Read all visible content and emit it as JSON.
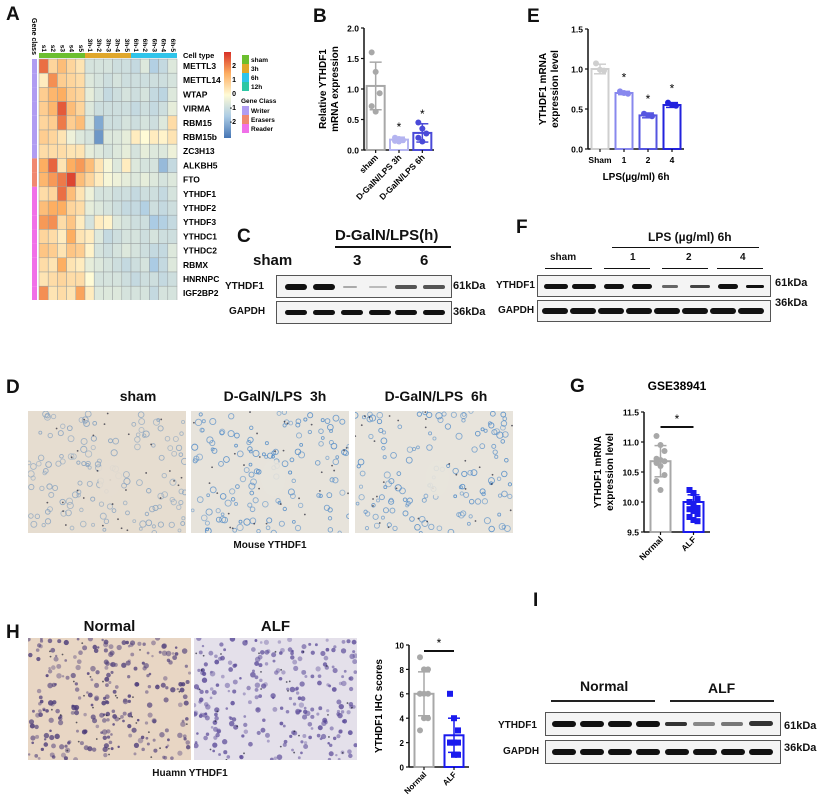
{
  "figure": {
    "panels": {
      "A": {
        "label": "A"
      },
      "B": {
        "label": "B"
      },
      "C": {
        "label": "C"
      },
      "D": {
        "label": "D"
      },
      "E": {
        "label": "E"
      },
      "F": {
        "label": "F"
      },
      "G": {
        "label": "G"
      },
      "H": {
        "label": "H"
      },
      "I": {
        "label": "I"
      }
    }
  },
  "heatmap": {
    "gene_class_header": "Gene class",
    "cell_type_label": "Cell type",
    "columns": [
      "s1",
      "s2",
      "s3",
      "s4",
      "s5",
      "3h-1",
      "3h-2",
      "3h-3",
      "3h-4",
      "3h-5",
      "6h-1",
      "6h-2",
      "6h-3",
      "6h-4",
      "6h-5"
    ],
    "column_groups": [
      {
        "name": "sham",
        "color": "#6cbf2f",
        "count": 5
      },
      {
        "name": "3h",
        "color": "#e0a72b",
        "count": 5
      },
      {
        "name": "6h",
        "color": "#2fc4ea",
        "count": 5
      }
    ],
    "rows": [
      "METTL3",
      "METTL14",
      "WTAP",
      "VIRMA",
      "RBM15",
      "RBM15b",
      "ZC3H13",
      "ALKBH5",
      "FTO",
      "YTHDF1",
      "YTHDF2",
      "YTHDF3",
      "YTHDC1",
      "YTHDC2",
      "RBMX",
      "HNRNPC",
      "IGF2BP2"
    ],
    "row_classes": [
      "Writer",
      "Writer",
      "Writer",
      "Writer",
      "Writer",
      "Writer",
      "Writer",
      "Eraser",
      "Eraser",
      "Reader",
      "Reader",
      "Reader",
      "Reader",
      "Reader",
      "Reader",
      "Reader",
      "Reader"
    ],
    "colorbar_ticks": [
      "2",
      "1",
      "0",
      "-1",
      "-2"
    ],
    "legend_celltype": [
      {
        "name": "sham",
        "color": "#6cbf2f"
      },
      {
        "name": "3h",
        "color": "#e0a72b"
      },
      {
        "name": "6h",
        "color": "#2fc4ea"
      },
      {
        "name": "12h",
        "color": "#2ec7a5"
      }
    ],
    "legend_geneclass_title": "Gene Class",
    "legend_geneclass": [
      {
        "name": "Writer",
        "color": "#b09cf2"
      },
      {
        "name": "Erasers",
        "color": "#f08870"
      },
      {
        "name": "Reader",
        "color": "#f070e8"
      }
    ],
    "values": [
      [
        1.6,
        0.5,
        0.8,
        0.5,
        0.3,
        -0.5,
        -0.5,
        -0.5,
        -0.6,
        -0.6,
        -0.7,
        -0.4,
        -0.9,
        -0.7,
        -0.4
      ],
      [
        0.2,
        1.3,
        0.6,
        0.5,
        0.4,
        -0.4,
        -0.5,
        -0.6,
        -0.5,
        -0.6,
        -0.6,
        -0.6,
        -0.6,
        -0.6,
        -0.5
      ],
      [
        0.6,
        0.9,
        1.0,
        0.6,
        0.5,
        -0.3,
        -0.5,
        -0.7,
        -0.6,
        -0.5,
        -0.6,
        -0.5,
        -0.7,
        -0.8,
        -0.4
      ],
      [
        0.6,
        0.9,
        1.8,
        0.8,
        0.5,
        -0.4,
        -0.6,
        -0.6,
        -0.6,
        -0.6,
        -0.7,
        -0.6,
        -0.7,
        -0.6,
        -0.3
      ],
      [
        0.5,
        0.6,
        1.5,
        0.6,
        0.8,
        -0.4,
        -1.4,
        -0.6,
        -0.6,
        -0.5,
        -0.6,
        -0.5,
        -0.6,
        -0.4,
        0.4
      ],
      [
        0.6,
        0.5,
        0.3,
        -0.2,
        -0.4,
        -0.5,
        -1.6,
        -0.4,
        -0.4,
        -0.3,
        0.2,
        0.0,
        0.2,
        0.1,
        0.3
      ],
      [
        0.4,
        0.4,
        0.4,
        0.3,
        0.3,
        -0.3,
        -0.4,
        -0.5,
        -0.4,
        -0.3,
        -0.5,
        -0.3,
        -0.4,
        -0.4,
        -0.2
      ],
      [
        1.0,
        1.7,
        0.3,
        1.0,
        1.2,
        0.8,
        0.3,
        -0.1,
        -0.4,
        0.2,
        -0.4,
        -0.5,
        -0.5,
        -1.2,
        -0.7
      ],
      [
        0.9,
        1.2,
        1.5,
        2.0,
        0.8,
        0.5,
        0.2,
        -0.1,
        -0.2,
        -0.3,
        -0.4,
        -0.3,
        -0.4,
        -0.5,
        -0.4
      ],
      [
        0.4,
        0.5,
        1.6,
        0.8,
        0.3,
        -0.2,
        -0.5,
        -0.5,
        -0.6,
        -0.6,
        -0.7,
        -0.6,
        -0.6,
        -0.7,
        -0.5
      ],
      [
        0.8,
        1.0,
        1.0,
        0.5,
        0.4,
        -0.3,
        -0.4,
        -0.5,
        -0.6,
        -0.7,
        -0.7,
        -0.9,
        -0.6,
        -0.7,
        -0.6
      ],
      [
        1.2,
        1.3,
        0.4,
        0.7,
        0.2,
        -0.5,
        0.2,
        0.1,
        -0.4,
        -0.5,
        -0.6,
        -0.6,
        -1.0,
        -0.9,
        -0.7
      ],
      [
        0.5,
        0.4,
        0.2,
        1.0,
        0.3,
        0.2,
        -0.4,
        -0.7,
        -0.6,
        -0.5,
        -0.5,
        -0.6,
        -0.5,
        -0.6,
        -0.6
      ],
      [
        0.7,
        0.6,
        0.3,
        0.7,
        0.6,
        0.1,
        -0.5,
        -0.6,
        -0.5,
        -0.4,
        -0.5,
        -0.6,
        -0.7,
        -0.7,
        -0.4
      ],
      [
        0.4,
        0.3,
        1.0,
        0.3,
        0.2,
        -0.3,
        -0.4,
        -0.5,
        -0.6,
        -0.7,
        -0.6,
        -0.5,
        -1.0,
        -0.7,
        -0.4
      ],
      [
        0.3,
        0.4,
        0.5,
        0.4,
        0.4,
        0.0,
        -0.5,
        -0.5,
        -0.5,
        -0.6,
        -0.7,
        -0.6,
        -0.6,
        -0.7,
        -0.6
      ],
      [
        1.3,
        0.3,
        0.4,
        0.3,
        1.1,
        0.2,
        -0.4,
        -0.4,
        -0.4,
        -0.5,
        -0.5,
        -0.5,
        -0.7,
        -0.5,
        -0.5
      ]
    ]
  },
  "panelC": {
    "treatment_label": "D-GalN/LPS(h)",
    "group_labels": [
      "sham",
      "3",
      "6"
    ],
    "row_labels": [
      "YTHDF1",
      "GAPDH"
    ],
    "sizes": [
      "61kDa",
      "36kDa"
    ]
  },
  "panelF": {
    "treatment_label": "LPS (µg/ml) 6h",
    "group_labels": [
      "sham",
      "1",
      "2",
      "4"
    ],
    "row_labels": [
      "YTHDF1",
      "GAPDH"
    ],
    "sizes": [
      "61kDa",
      "36kDa"
    ]
  },
  "panelD": {
    "titles": [
      "sham",
      "D-GalN/LPS  3h",
      "D-GalN/LPS  6h"
    ],
    "caption": "Mouse YTHDF1"
  },
  "panelH": {
    "titles": [
      "Normal",
      "ALF"
    ],
    "caption": "Huamn YTHDF1"
  },
  "panelI": {
    "group_labels": [
      "Normal",
      "ALF"
    ],
    "row_labels": [
      "YTHDF1",
      "GAPDH"
    ],
    "sizes": [
      "61kDa",
      "36kDa"
    ]
  },
  "chart_data": [
    {
      "panel": "B",
      "type": "bar",
      "title": "",
      "xlabel": "",
      "ylabel": "Relative YTHDF1 mRNA  expression",
      "ylim": [
        0,
        2.0
      ],
      "yticks": [
        "0.0",
        "0.5",
        "1.0",
        "1.5",
        "2.0"
      ],
      "categories": [
        "sham",
        "D-GalN/LPS 3h",
        "D-GalN/LPS 6h"
      ],
      "values": [
        1.05,
        0.17,
        0.28
      ],
      "errors": [
        0.39,
        0.04,
        0.15
      ],
      "points": [
        [
          1.6,
          1.28,
          0.93,
          0.72,
          0.63
        ],
        [
          0.2,
          0.18,
          0.16,
          0.15,
          0.14
        ],
        [
          0.45,
          0.35,
          0.27,
          0.2,
          0.14
        ]
      ],
      "colors": [
        "#a8a8a8",
        "#b4b4f0",
        "#4a4ad8"
      ],
      "significance": [
        "",
        "*",
        "*"
      ]
    },
    {
      "panel": "E",
      "type": "bar",
      "title": "",
      "xlabel": "LPS(µg/ml) 6h",
      "ylabel": "YTHDF1 mRNA expression level",
      "ylim": [
        0,
        1.5
      ],
      "yticks": [
        "0.0",
        "0.5",
        "1.0",
        "1.5"
      ],
      "categories": [
        "Sham",
        "1",
        "2",
        "4"
      ],
      "values": [
        1.0,
        0.7,
        0.42,
        0.55
      ],
      "errors": [
        0.06,
        0.02,
        0.03,
        0.03
      ],
      "points": [
        [
          1.07,
          0.99,
          0.98
        ],
        [
          0.72,
          0.7,
          0.69
        ],
        [
          0.44,
          0.42,
          0.41
        ],
        [
          0.58,
          0.55,
          0.54
        ]
      ],
      "colors": [
        "#cfcfcf",
        "#8888ee",
        "#5555e0",
        "#2222dd"
      ],
      "significance": [
        "",
        "*",
        "*",
        "*"
      ]
    },
    {
      "panel": "G",
      "type": "bar",
      "title": "GSE38941",
      "xlabel": "",
      "ylabel": "YTHDF1 mRNA expression level",
      "ylim": [
        9.5,
        11.5
      ],
      "yticks": [
        "9.5",
        "10.0",
        "10.5",
        "11.0",
        "11.5"
      ],
      "categories": [
        "Normal",
        "ALF"
      ],
      "values": [
        10.68,
        10.0
      ],
      "errors": [
        0.26,
        0.12
      ],
      "points": [
        [
          11.1,
          10.95,
          10.85,
          10.72,
          10.7,
          10.68,
          10.65,
          10.6,
          10.45,
          10.35,
          10.2
        ],
        [
          10.2,
          10.15,
          10.05,
          10.0,
          9.95,
          9.9,
          9.88,
          9.85,
          9.8,
          9.75,
          9.7,
          9.68
        ]
      ],
      "colors": [
        "#a8a8a8",
        "#1a1aee"
      ],
      "significance": "*"
    },
    {
      "panel": "H",
      "type": "bar",
      "title": "",
      "xlabel": "",
      "ylabel": "YTHDF1 IHC scores",
      "ylim": [
        0,
        10
      ],
      "yticks": [
        "0",
        "2",
        "4",
        "6",
        "8",
        "10"
      ],
      "categories": [
        "Normal",
        "ALF"
      ],
      "values": [
        6.0,
        2.6
      ],
      "errors": [
        1.8,
        1.4
      ],
      "points": [
        [
          9,
          8,
          8,
          6,
          6,
          6,
          6,
          4,
          4,
          3
        ],
        [
          6,
          4,
          3,
          2,
          2,
          2,
          2,
          1,
          1
        ]
      ],
      "colors": [
        "#a8a8a8",
        "#1a1aee"
      ],
      "significance": "*"
    }
  ]
}
